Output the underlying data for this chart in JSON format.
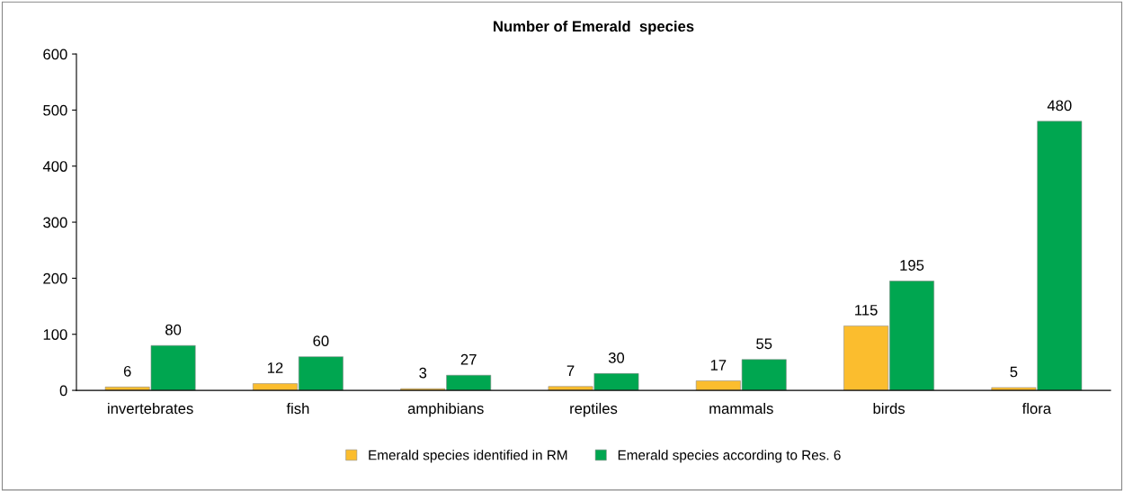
{
  "chart_data": {
    "type": "bar",
    "title": "Number of Emerald  species",
    "categories": [
      "invertebrates",
      "fish",
      "amphibians",
      "reptiles",
      "mammals",
      "birds",
      "flora"
    ],
    "series": [
      {
        "name": "Emerald species identified in RM",
        "color": "#fbbd2e",
        "values": [
          6,
          12,
          3,
          7,
          17,
          115,
          5
        ]
      },
      {
        "name": "Emerald species according to Res. 6",
        "color": "#00a650",
        "values": [
          80,
          60,
          27,
          30,
          55,
          195,
          480
        ]
      }
    ],
    "ylim": [
      0,
      600
    ],
    "yticks": [
      0,
      100,
      200,
      300,
      400,
      500,
      600
    ],
    "grid": false,
    "legend": "bottom",
    "data_labels": true
  }
}
